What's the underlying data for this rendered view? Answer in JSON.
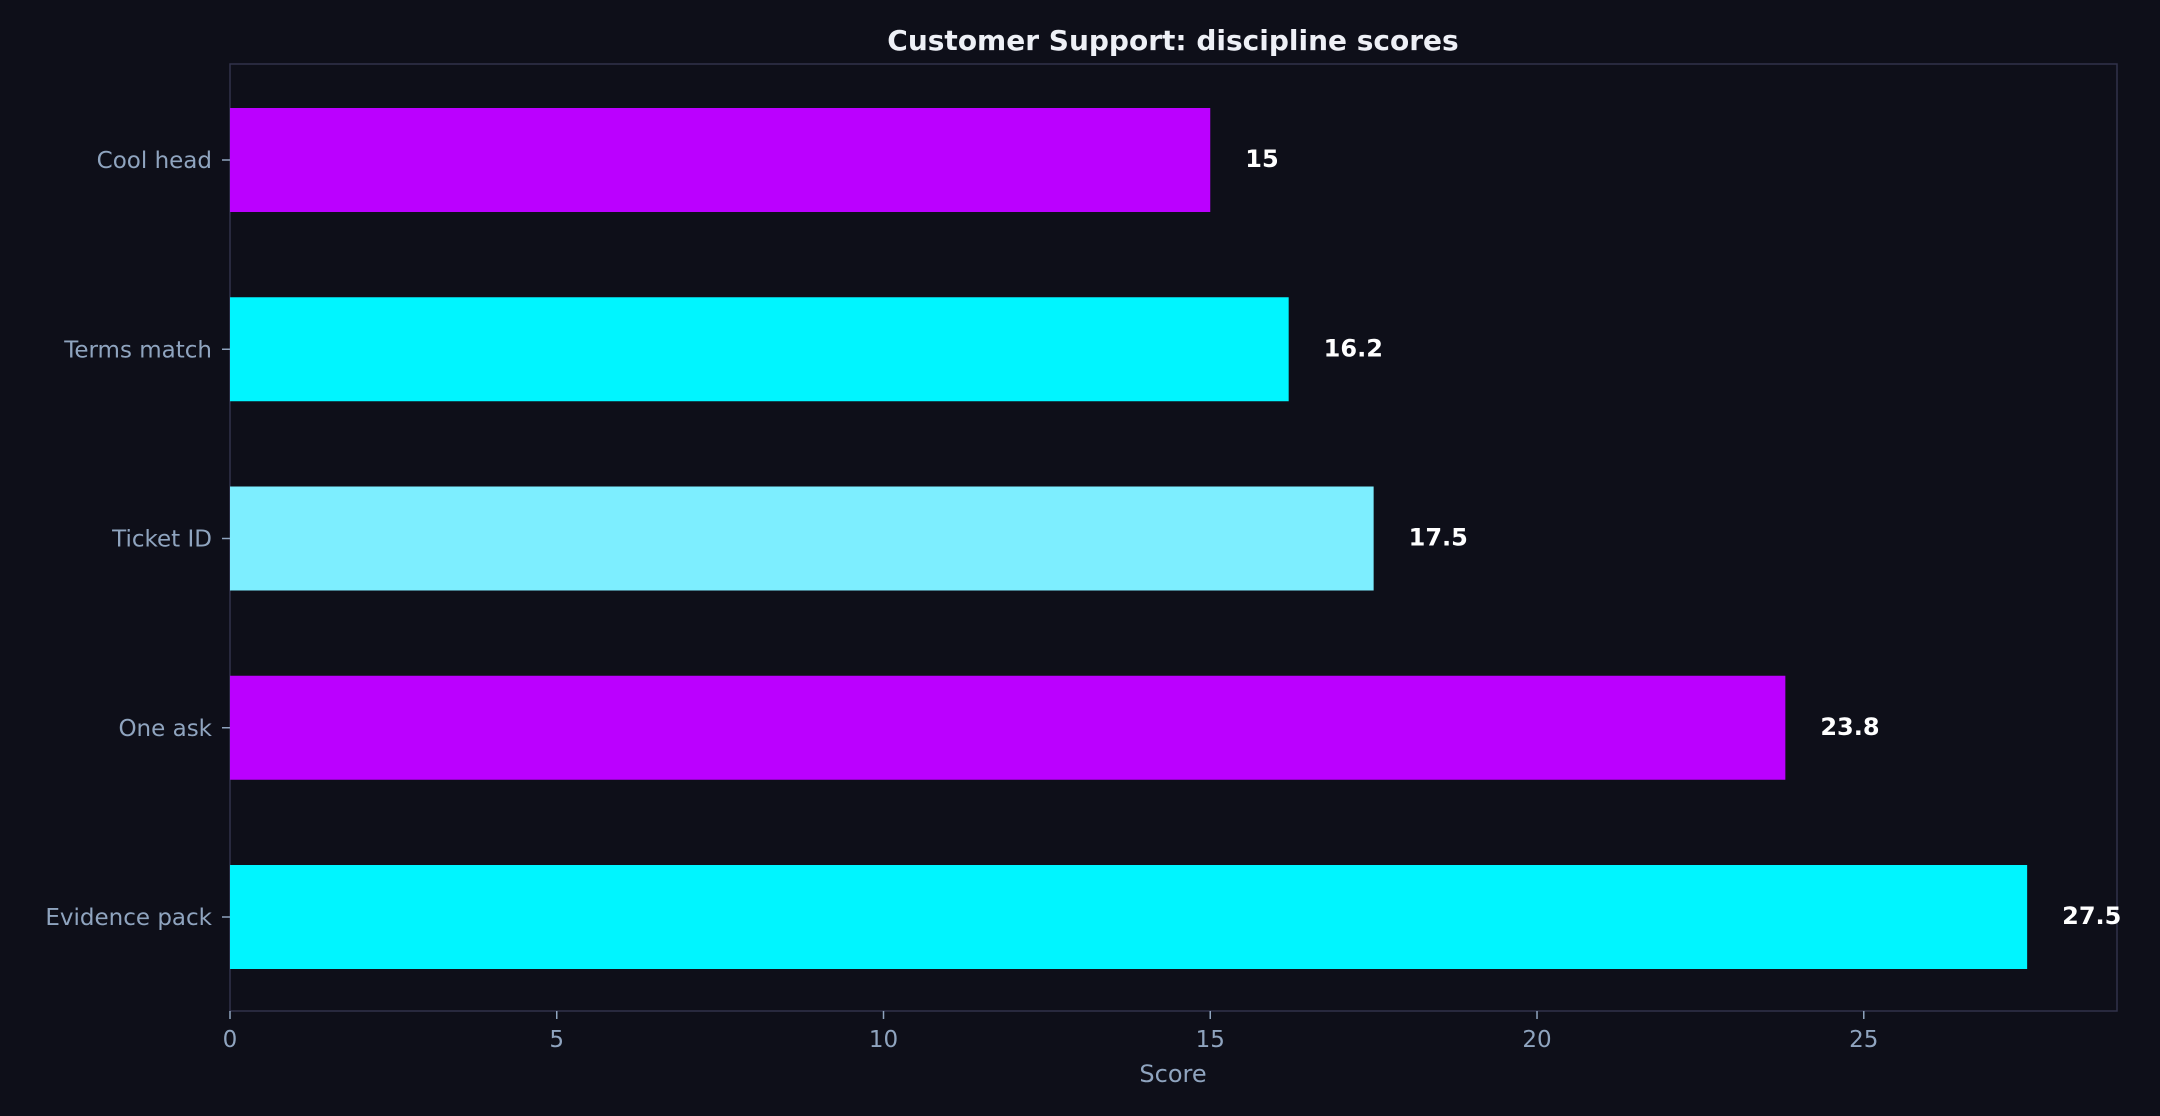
{
  "chart_data": {
    "type": "bar",
    "orientation": "horizontal",
    "title": "Customer Support: discipline scores",
    "xlabel": "Score",
    "ylabel": "",
    "categories": [
      "Cool head",
      "Terms match",
      "Ticket ID",
      "One ask",
      "Evidence pack"
    ],
    "values": [
      15,
      16.2,
      17.5,
      23.8,
      27.5
    ],
    "value_labels": [
      "15",
      "16.2",
      "17.5",
      "23.8",
      "27.5"
    ],
    "bar_colors": [
      "#bb00ff",
      "#00f5ff",
      "#7deeff",
      "#bb00ff",
      "#00f5ff"
    ],
    "xlim": [
      0,
      28.875
    ],
    "xticks": [
      0,
      5,
      10,
      15,
      20,
      25
    ],
    "grid": false,
    "legend": "none"
  },
  "colors": {
    "background": "#0e0f19",
    "frame": "#30324a",
    "text": "#8fa4bf",
    "title": "#eef0f6",
    "value_text": "#ffffff"
  }
}
